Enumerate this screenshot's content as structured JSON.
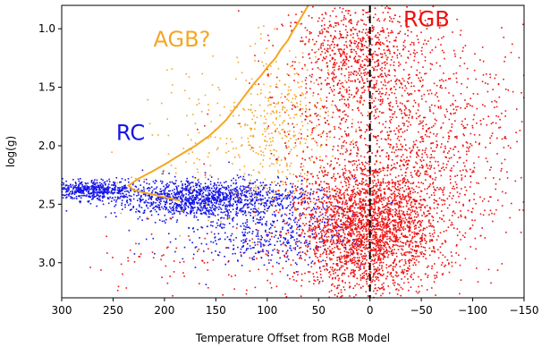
{
  "chart_data": {
    "type": "scatter",
    "xlabel": "Temperature Offset from RGB Model",
    "ylabel": "log(g)",
    "xlim": [
      300,
      -150
    ],
    "ylim": [
      3.3,
      0.8
    ],
    "x_ticks": [
      300,
      250,
      200,
      150,
      100,
      50,
      0,
      -50,
      -100,
      -150
    ],
    "x_tick_labels": [
      "300",
      "250",
      "200",
      "150",
      "100",
      "50",
      "0",
      "−50",
      "−100",
      "−150"
    ],
    "y_ticks": [
      1.0,
      1.5,
      2.0,
      2.5,
      3.0
    ],
    "y_tick_labels": [
      "1.0",
      "1.5",
      "2.0",
      "2.5",
      "3.0"
    ],
    "grid": false,
    "reference_line": {
      "x": 0,
      "style": "dashed",
      "color": "#000000"
    },
    "annotations": [
      {
        "text": "RGB",
        "x": -55,
        "y": 0.98,
        "color": "#ee1111"
      },
      {
        "text": "AGB?",
        "x": 183,
        "y": 1.15,
        "color": "#f5a623"
      },
      {
        "text": "RC",
        "x": 233,
        "y": 1.95,
        "color": "#1515e6"
      }
    ],
    "series": [
      {
        "color": "#1515e6",
        "marker": "dot",
        "clusters": [
          {
            "n": 1300,
            "x_mean": 160,
            "x_sd": 45,
            "y_mean": 2.45,
            "y_sd": 0.08
          },
          {
            "n": 500,
            "x_mean": 270,
            "x_sd": 20,
            "y_mean": 2.38,
            "y_sd": 0.04
          },
          {
            "n": 500,
            "x_mean": 100,
            "x_sd": 45,
            "y_mean": 2.75,
            "y_sd": 0.15
          }
        ]
      },
      {
        "color": "#f5a623",
        "marker": "dot",
        "clusters": [
          {
            "n": 450,
            "x_mean": 90,
            "x_sd": 35,
            "y_mean": 1.85,
            "y_sd": 0.35
          },
          {
            "n": 60,
            "x_mean": 180,
            "x_sd": 30,
            "y_mean": 2.0,
            "y_sd": 0.3
          }
        ]
      },
      {
        "color": "#ee1111",
        "marker": "dot",
        "clusters": [
          {
            "n": 2600,
            "x_mean": 0,
            "x_sd": 35,
            "y_mean": 2.7,
            "y_sd": 0.28
          },
          {
            "n": 1400,
            "x_mean": -30,
            "x_sd": 60,
            "y_mean": 1.9,
            "y_sd": 0.5
          },
          {
            "n": 700,
            "x_mean": 15,
            "x_sd": 30,
            "y_mean": 1.2,
            "y_sd": 0.25
          },
          {
            "n": 150,
            "x_mean": 120,
            "x_sd": 90,
            "y_mean": 3.0,
            "y_sd": 0.15
          }
        ]
      }
    ],
    "model_curve": {
      "color": "#f5a623",
      "points": [
        [
          185,
          2.47
        ],
        [
          200,
          2.44
        ],
        [
          215,
          2.41
        ],
        [
          230,
          2.38
        ],
        [
          235,
          2.34
        ],
        [
          225,
          2.28
        ],
        [
          212,
          2.22
        ],
        [
          198,
          2.15
        ],
        [
          185,
          2.08
        ],
        [
          170,
          2.0
        ],
        [
          157,
          1.92
        ],
        [
          148,
          1.85
        ],
        [
          140,
          1.78
        ],
        [
          133,
          1.7
        ],
        [
          126,
          1.62
        ],
        [
          120,
          1.55
        ],
        [
          113,
          1.47
        ],
        [
          106,
          1.4
        ],
        [
          99,
          1.32
        ],
        [
          92,
          1.25
        ],
        [
          87,
          1.18
        ],
        [
          80,
          1.1
        ],
        [
          75,
          1.02
        ],
        [
          70,
          0.95
        ],
        [
          64,
          0.86
        ],
        [
          60,
          0.8
        ]
      ]
    }
  }
}
